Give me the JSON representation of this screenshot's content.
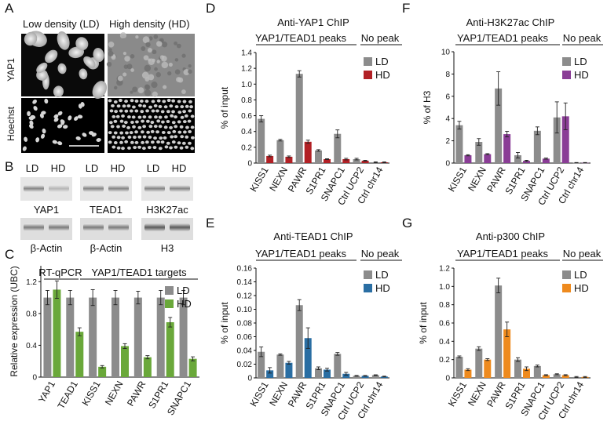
{
  "panel_labels": {
    "A": "A",
    "B": "B",
    "C": "C",
    "D": "D",
    "E": "E",
    "F": "F",
    "G": "G"
  },
  "panelA": {
    "col_titles": [
      "Low density (LD)",
      "High density (HD)"
    ],
    "row_labels": [
      "YAP1",
      "Hoechst"
    ]
  },
  "panelB": {
    "groups": [
      {
        "lanes": [
          "LD",
          "HD"
        ],
        "top_label": "YAP1",
        "bottom_label": "β-Actin"
      },
      {
        "lanes": [
          "LD",
          "HD"
        ],
        "top_label": "TEAD1",
        "bottom_label": "β-Actin"
      },
      {
        "lanes": [
          "LD",
          "HD"
        ],
        "top_label": "H3K27ac",
        "bottom_label": "H3"
      }
    ]
  },
  "colors": {
    "LD": "#8c8c8c",
    "HD_C": "#6aa83a",
    "HD_D": "#b22025",
    "HD_E": "#2a6ea3",
    "HD_F": "#8a3d96",
    "HD_G": "#ee8a1e"
  },
  "chart_data": [
    {
      "id": "C",
      "type": "bar",
      "title": "",
      "group_left": "RT-qPCR",
      "group_right": "YAP1/TEAD1 targets",
      "ylabel": "Relative expression (UBC)",
      "ylim": [
        0,
        1.4
      ],
      "yticks": [
        "0",
        "0.4",
        "0.8",
        "1.2"
      ],
      "ytick_values": [
        0,
        0.4,
        0.8,
        1.2
      ],
      "categories": [
        "YAP1",
        "TEAD1",
        "KISS1",
        "NEXN",
        "PAWR",
        "S1PR1",
        "SNAPC1"
      ],
      "series": [
        {
          "name": "LD",
          "values": [
            1.0,
            1.0,
            1.0,
            1.0,
            1.0,
            1.0,
            1.0
          ],
          "errors": [
            0.09,
            0.09,
            0.1,
            0.09,
            0.08,
            0.09,
            0.09
          ]
        },
        {
          "name": "HD",
          "values": [
            1.1,
            0.57,
            0.13,
            0.39,
            0.25,
            0.69,
            0.23
          ],
          "errors": [
            0.11,
            0.05,
            0.015,
            0.03,
            0.02,
            0.06,
            0.025
          ]
        }
      ]
    },
    {
      "id": "D",
      "type": "bar",
      "title": "Anti-YAP1 ChIP",
      "group_left": "YAP1/TEAD1 peaks",
      "group_right": "No peak",
      "ylabel": "% of input",
      "ylim": [
        0,
        1.4
      ],
      "yticks": [
        "0",
        "0.2",
        "0.4",
        "0.6",
        "0.8",
        "1.0",
        "1.2",
        "1.4"
      ],
      "ytick_values": [
        0,
        0.2,
        0.4,
        0.6,
        0.8,
        1.0,
        1.2,
        1.4
      ],
      "categories": [
        "KISS1",
        "NEXN",
        "PAWR",
        "S1PR1",
        "SNAPC1",
        "Ctrl UCP2",
        "Ctrl chr14"
      ],
      "series": [
        {
          "name": "LD",
          "values": [
            0.56,
            0.29,
            1.13,
            0.16,
            0.37,
            0.05,
            0.01
          ],
          "errors": [
            0.04,
            0.01,
            0.04,
            0.01,
            0.05,
            0.01,
            0.005
          ]
        },
        {
          "name": "HD",
          "values": [
            0.09,
            0.08,
            0.27,
            0.05,
            0.05,
            0.03,
            0.01
          ],
          "errors": [
            0.01,
            0.01,
            0.02,
            0.005,
            0.01,
            0.005,
            0.005
          ]
        }
      ]
    },
    {
      "id": "E",
      "type": "bar",
      "title": "Anti-TEAD1 ChIP",
      "group_left": "YAP1/TEAD1 peaks",
      "group_right": "No peak",
      "ylabel": "% of input",
      "ylim": [
        0,
        0.16
      ],
      "yticks": [
        "0",
        "0.02",
        "0.04",
        "0.06",
        "0.08",
        "0.10",
        "0.12",
        "0.14",
        "0.16"
      ],
      "ytick_values": [
        0,
        0.02,
        0.04,
        0.06,
        0.08,
        0.1,
        0.12,
        0.14,
        0.16
      ],
      "categories": [
        "KISS1",
        "NEXN",
        "PAWR",
        "S1PR1",
        "SNAPC1",
        "Ctrl UCP2",
        "Ctrl chr14"
      ],
      "series": [
        {
          "name": "LD",
          "values": [
            0.038,
            0.034,
            0.106,
            0.014,
            0.035,
            0.003,
            0.004
          ],
          "errors": [
            0.007,
            0.001,
            0.008,
            0.002,
            0.002,
            0.0005,
            0.0005
          ]
        },
        {
          "name": "HD",
          "values": [
            0.011,
            0.022,
            0.058,
            0.012,
            0.006,
            0.003,
            0.002
          ],
          "errors": [
            0.004,
            0.002,
            0.015,
            0.002,
            0.002,
            0.0005,
            0.0005
          ]
        }
      ]
    },
    {
      "id": "F",
      "type": "bar",
      "title": "Anti-H3K27ac ChIP",
      "group_left": "YAP1/TEAD1 peaks",
      "group_right": "No peak",
      "ylabel": "% of H3",
      "ylim": [
        0,
        10
      ],
      "yticks": [
        "0",
        "2",
        "4",
        "6",
        "8",
        "10"
      ],
      "ytick_values": [
        0,
        2,
        4,
        6,
        8,
        10
      ],
      "categories": [
        "KISS1",
        "NEXN",
        "PAWR",
        "S1PR1",
        "SNAPC1",
        "Ctrl UCP2",
        "Ctrl chr14"
      ],
      "series": [
        {
          "name": "LD",
          "values": [
            3.4,
            1.9,
            6.7,
            0.7,
            2.9,
            4.1,
            0.03
          ],
          "errors": [
            0.35,
            0.3,
            1.5,
            0.25,
            0.35,
            1.4,
            0.02
          ]
        },
        {
          "name": "HD",
          "values": [
            0.7,
            0.8,
            2.6,
            0.2,
            0.4,
            4.2,
            0.03
          ],
          "errors": [
            0.05,
            0.05,
            0.25,
            0.05,
            0.05,
            1.2,
            0.02
          ]
        }
      ]
    },
    {
      "id": "G",
      "type": "bar",
      "title": "Anti-p300 ChIP",
      "group_left": "YAP1/TEAD1 peaks",
      "group_right": "No peak",
      "ylabel": "% of input",
      "ylim": [
        0,
        1.2
      ],
      "yticks": [
        "0",
        "0.2",
        "0.4",
        "0.6",
        "0.8",
        "1.0",
        "1.2"
      ],
      "ytick_values": [
        0,
        0.2,
        0.4,
        0.6,
        0.8,
        1.0,
        1.2
      ],
      "categories": [
        "KISS1",
        "NEXN",
        "PAWR",
        "S1PR1",
        "SNAPC1",
        "Ctrl UCP2",
        "Ctrl chr14"
      ],
      "series": [
        {
          "name": "LD",
          "values": [
            0.23,
            0.32,
            1.01,
            0.2,
            0.13,
            0.04,
            0.01
          ],
          "errors": [
            0.01,
            0.02,
            0.08,
            0.02,
            0.01,
            0.005,
            0.005
          ]
        },
        {
          "name": "HD",
          "values": [
            0.09,
            0.2,
            0.53,
            0.1,
            0.03,
            0.03,
            0.01
          ],
          "errors": [
            0.01,
            0.01,
            0.08,
            0.02,
            0.005,
            0.005,
            0.005
          ]
        }
      ]
    }
  ]
}
